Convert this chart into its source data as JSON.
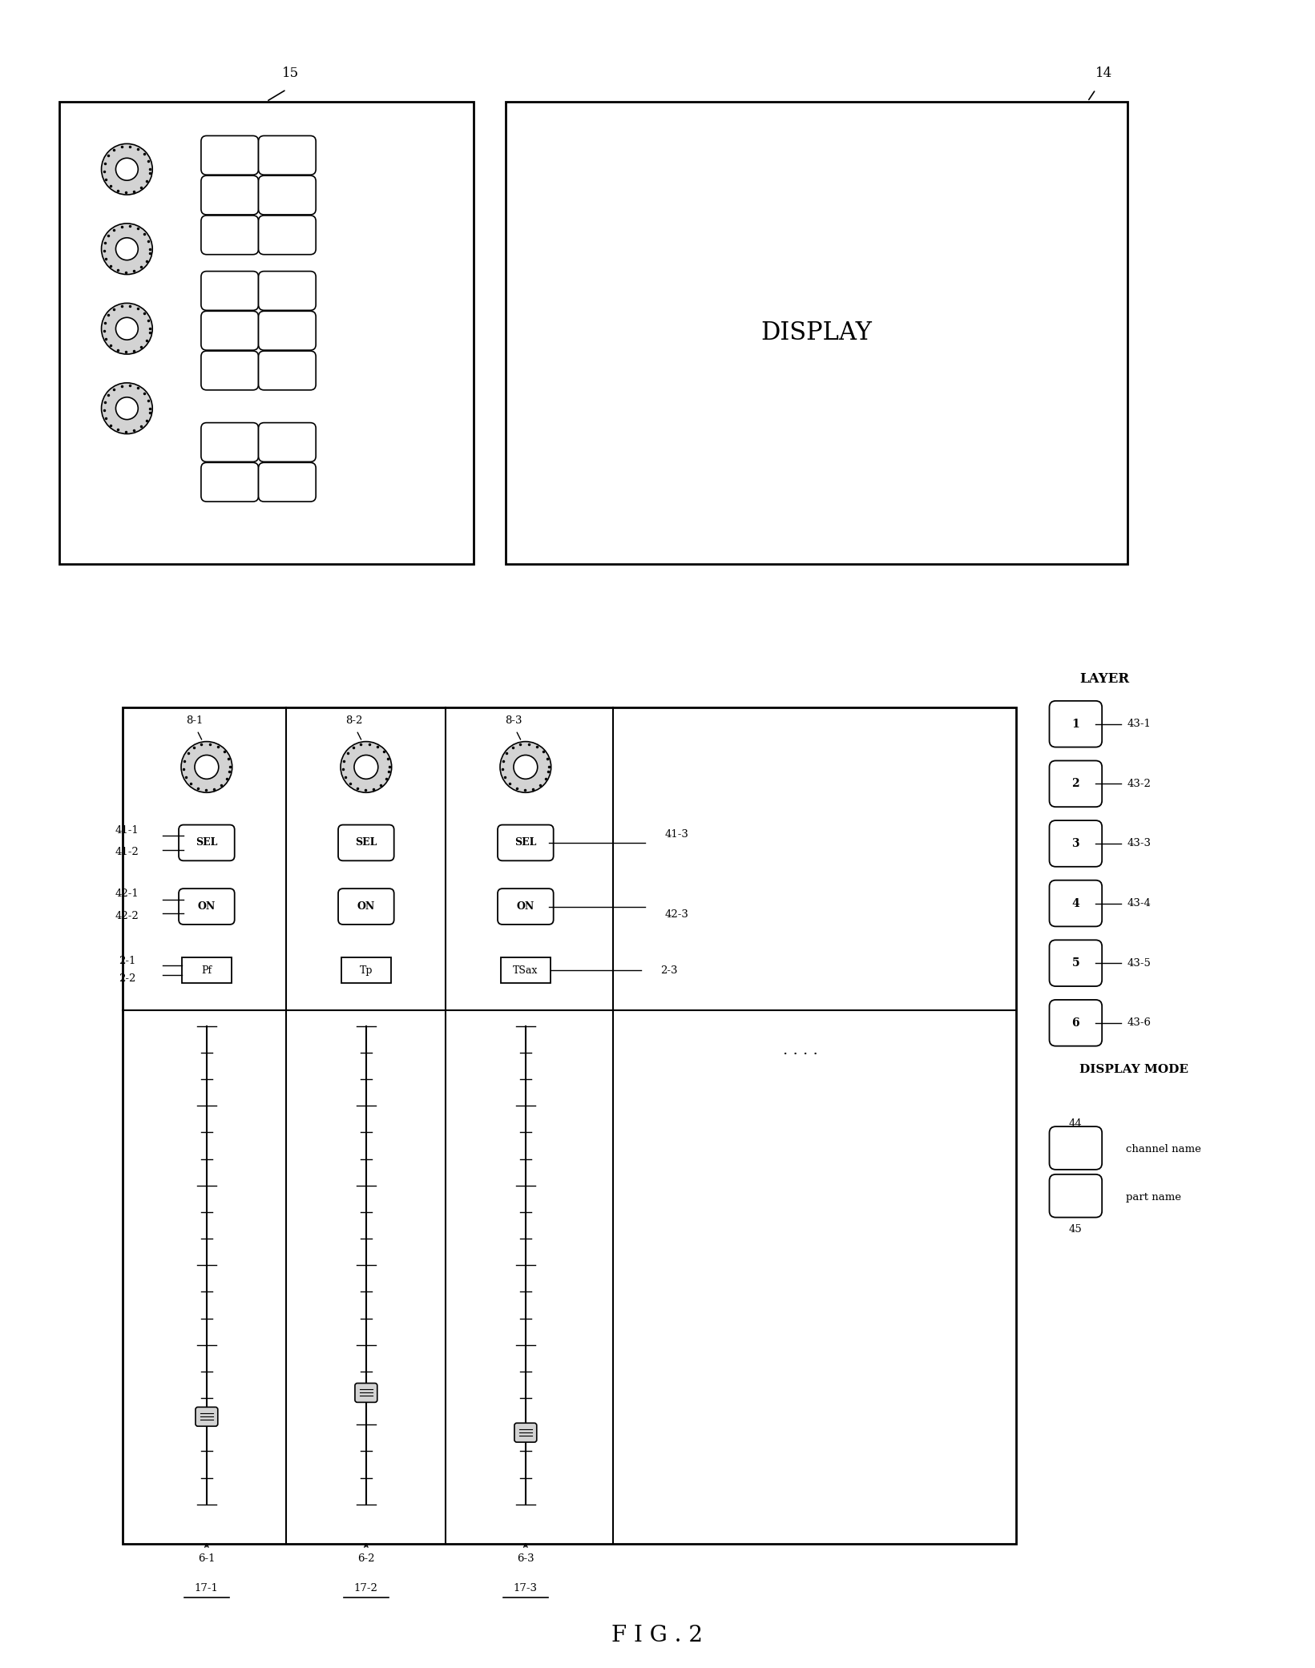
{
  "fig_label": "F I G . 2",
  "bg_color": "#ffffff",
  "figsize": [
    16.41,
    20.82
  ],
  "dpi": 100,
  "label_15": "15",
  "label_14": "14",
  "display_text": "DISPLAY",
  "layer_title": "LAYER",
  "layer_buttons": [
    "1",
    "2",
    "3",
    "4",
    "5",
    "6"
  ],
  "layer_labels": [
    "43-1",
    "43-2",
    "43-3",
    "43-4",
    "43-5",
    "43-6"
  ],
  "display_mode_title": "DISPLAY MODE",
  "display_mode_label1": "channel name",
  "display_mode_label2": "part name",
  "display_mode_num1": "44",
  "display_mode_num2": "45",
  "knob_labels": [
    "8-1",
    "8-2",
    "8-3"
  ],
  "channel_names": [
    "Pf",
    "Tp",
    "TSax"
  ],
  "fader_labels": [
    "6-1",
    "6-2",
    "6-3"
  ],
  "fader_pos_labels": [
    "17-1",
    "17-2",
    "17-3"
  ]
}
